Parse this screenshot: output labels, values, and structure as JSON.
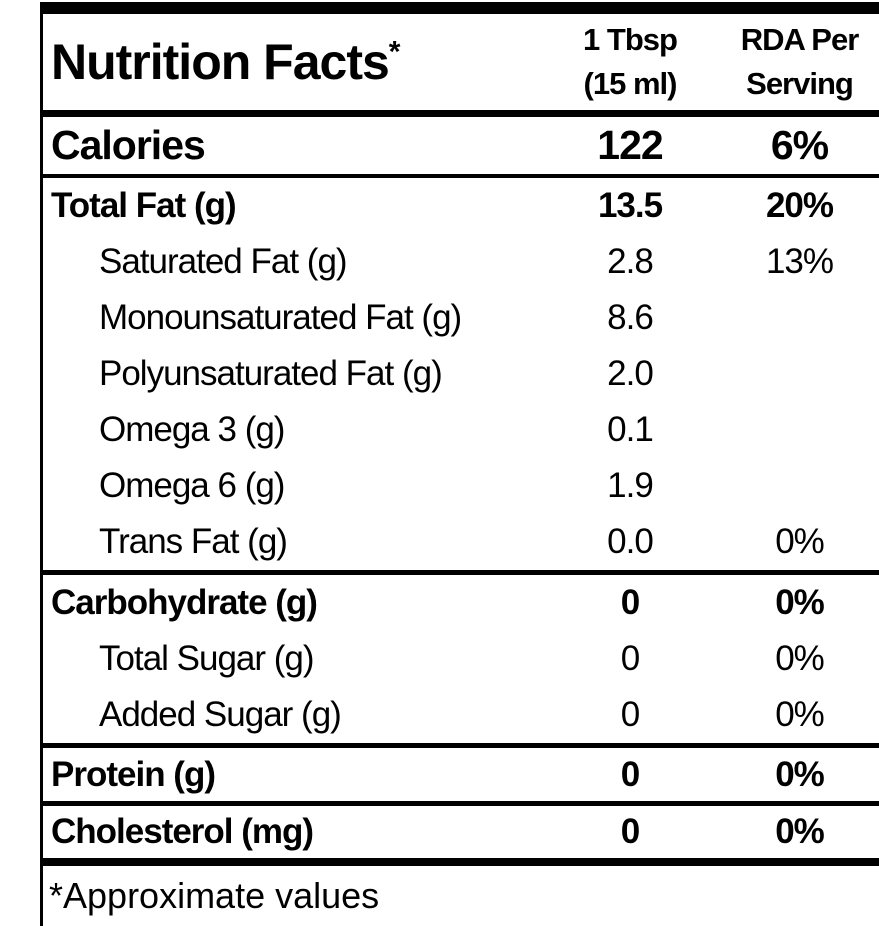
{
  "colors": {
    "text": "#000000",
    "background": "#ffffff",
    "rules": "#000000"
  },
  "table": {
    "title": "Nutrition Facts",
    "title_superscript": "*",
    "columns": [
      {
        "line1": "1 Tbsp",
        "line2": "(15 ml)"
      },
      {
        "line1": "RDA Per",
        "line2": "Serving"
      }
    ],
    "rows": [
      {
        "label": "Calories",
        "amount": "122",
        "rda": "6%"
      },
      {
        "label": "Total Fat (g)",
        "amount": "13.5",
        "rda": "20%"
      },
      {
        "label": "Saturated Fat (g)",
        "amount": "2.8",
        "rda": "13%"
      },
      {
        "label": "Monounsaturated Fat (g)",
        "amount": "8.6",
        "rda": ""
      },
      {
        "label": "Polyunsaturated Fat (g)",
        "amount": "2.0",
        "rda": ""
      },
      {
        "label": "Omega 3 (g)",
        "amount": "0.1",
        "rda": ""
      },
      {
        "label": "Omega 6 (g)",
        "amount": "1.9",
        "rda": ""
      },
      {
        "label": "Trans Fat (g)",
        "amount": "0.0",
        "rda": "0%"
      },
      {
        "label": "Carbohydrate (g)",
        "amount": "0",
        "rda": "0%"
      },
      {
        "label": "Total Sugar (g)",
        "amount": "0",
        "rda": "0%"
      },
      {
        "label": "Added Sugar (g)",
        "amount": "0",
        "rda": "0%"
      },
      {
        "label": "Protein (g)",
        "amount": "0",
        "rda": "0%"
      },
      {
        "label": "Cholesterol (mg)",
        "amount": "0",
        "rda": "0%"
      }
    ],
    "footnote": "*Approximate values"
  }
}
